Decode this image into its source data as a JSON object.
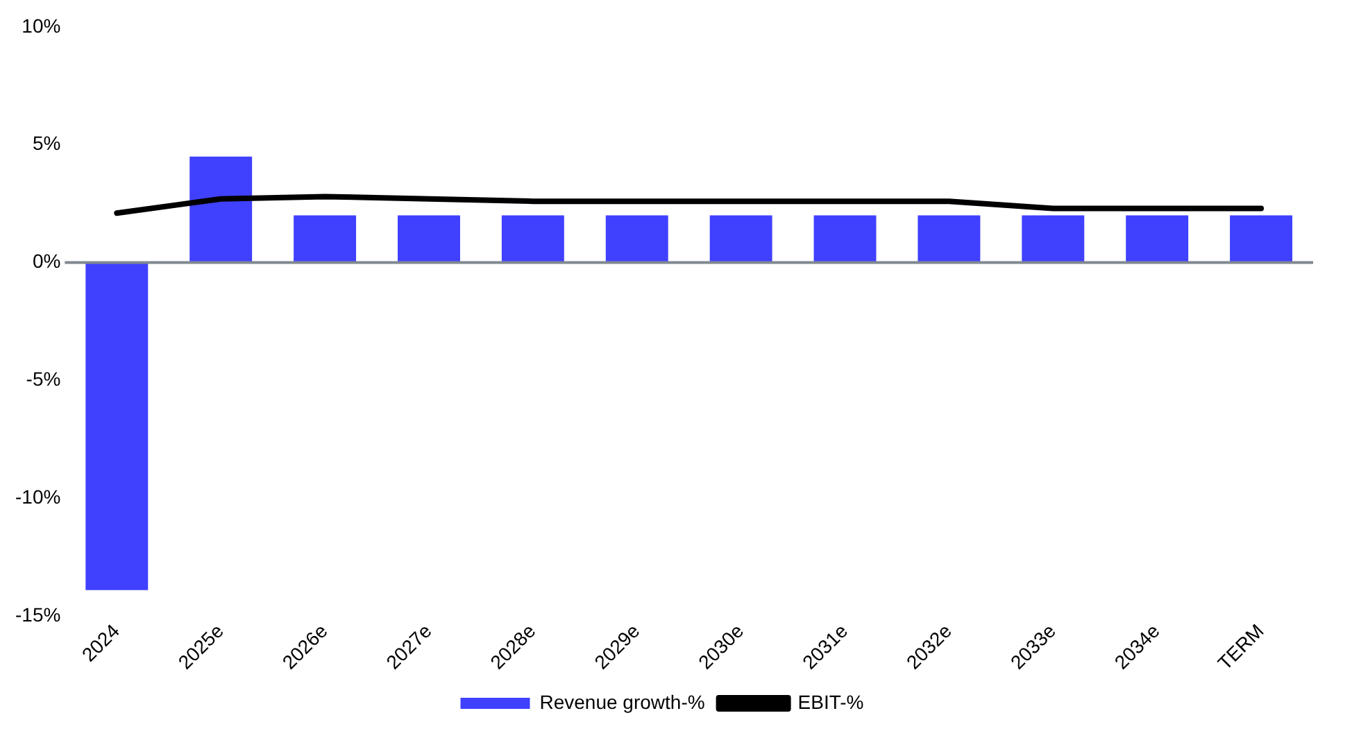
{
  "chart_data": {
    "type": "bar",
    "categories": [
      "2024",
      "2025e",
      "2026e",
      "2027e",
      "2028e",
      "2029e",
      "2030e",
      "2031e",
      "2032e",
      "2033e",
      "2034e",
      "TERM"
    ],
    "series": [
      {
        "name": "Revenue growth-%",
        "color": "#4040ff",
        "values": [
          -13.9,
          4.5,
          2.0,
          2.0,
          2.0,
          2.0,
          2.0,
          2.0,
          2.0,
          2.0,
          2.0,
          2.0
        ]
      },
      {
        "name": "EBIT-%",
        "type": "line",
        "color": "#000000",
        "values": [
          2.1,
          2.7,
          2.8,
          2.7,
          2.6,
          2.6,
          2.6,
          2.6,
          2.6,
          2.3,
          2.3,
          2.3
        ]
      }
    ],
    "ylim": [
      -15,
      10
    ],
    "yticks": [
      {
        "value": -15,
        "label": "-15%"
      },
      {
        "value": -10,
        "label": "-10%"
      },
      {
        "value": -5,
        "label": "-5%"
      },
      {
        "value": 0,
        "label": "0%"
      },
      {
        "value": 5,
        "label": "5%"
      },
      {
        "value": 10,
        "label": "10%"
      }
    ],
    "legend": "bottom"
  }
}
